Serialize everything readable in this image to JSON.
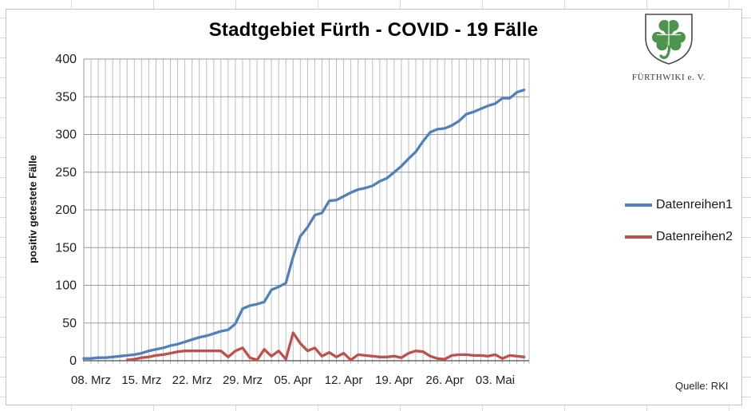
{
  "chart": {
    "title": "Stadtgebiet Fürth - COVID - 19 Fälle",
    "y_axis_title": "positiv getestete Fälle",
    "source": "Quelle: RKI",
    "legend": [
      {
        "label": "Datenreihen1",
        "color": "#4F81BD"
      },
      {
        "label": "Datenreihen2",
        "color": "#C0504D"
      }
    ]
  },
  "logo": {
    "org": "FÜRTHWIKI e. V.",
    "icon": "cloverleaf-shield",
    "leaf_color": "#4f944e"
  },
  "chart_data": {
    "type": "line",
    "title": "Stadtgebiet Fürth - COVID - 19 Fälle",
    "xlabel": "",
    "ylabel": "positiv getestete Fälle",
    "ylim": [
      0,
      400
    ],
    "y_ticks": [
      0,
      50,
      100,
      150,
      200,
      250,
      300,
      350,
      400
    ],
    "x_tick_labels": [
      "08. Mrz",
      "15. Mrz",
      "22. Mrz",
      "29. Mrz",
      "05. Apr",
      "12. Apr",
      "19. Apr",
      "26. Apr",
      "03. Mai"
    ],
    "x_tick_indices": [
      1,
      8,
      15,
      22,
      29,
      36,
      43,
      50,
      57
    ],
    "grid": {
      "major_horizontal": true,
      "minor_vertical_daily": true
    },
    "legend_position": "right",
    "categories": [
      "07. Mrz",
      "08. Mrz",
      "09. Mrz",
      "10. Mrz",
      "11. Mrz",
      "12. Mrz",
      "13. Mrz",
      "14. Mrz",
      "15. Mrz",
      "16. Mrz",
      "17. Mrz",
      "18. Mrz",
      "19. Mrz",
      "20. Mrz",
      "21. Mrz",
      "22. Mrz",
      "23. Mrz",
      "24. Mrz",
      "25. Mrz",
      "26. Mrz",
      "27. Mrz",
      "28. Mrz",
      "29. Mrz",
      "30. Mrz",
      "31. Mrz",
      "01. Apr",
      "02. Apr",
      "03. Apr",
      "04. Apr",
      "05. Apr",
      "06. Apr",
      "07. Apr",
      "08. Apr",
      "09. Apr",
      "10. Apr",
      "11. Apr",
      "12. Apr",
      "13. Apr",
      "14. Apr",
      "15. Apr",
      "16. Apr",
      "17. Apr",
      "18. Apr",
      "19. Apr",
      "20. Apr",
      "21. Apr",
      "22. Apr",
      "23. Apr",
      "24. Apr",
      "25. Apr",
      "26. Apr",
      "27. Apr",
      "28. Apr",
      "29. Apr",
      "30. Apr",
      "01. Mai",
      "02. Mai",
      "03. Mai",
      "04. Mai",
      "05. Mai",
      "06. Mai",
      "07. Mai"
    ],
    "series": [
      {
        "name": "Datenreihen1",
        "color": "#4F81BD",
        "values": [
          3,
          3,
          4,
          4,
          5,
          6,
          7,
          8,
          10,
          13,
          15,
          17,
          20,
          22,
          25,
          28,
          31,
          33,
          36,
          39,
          41,
          49,
          69,
          73,
          75,
          78,
          94,
          98,
          103,
          138,
          165,
          177,
          193,
          196,
          212,
          213,
          218,
          223,
          227,
          229,
          232,
          238,
          242,
          250,
          258,
          268,
          277,
          291,
          303,
          307,
          308,
          312,
          318,
          327,
          330,
          334,
          338,
          341,
          348,
          348,
          356,
          359
        ]
      },
      {
        "name": "Datenreihen2",
        "color": "#C0504D",
        "values": [
          null,
          null,
          null,
          null,
          null,
          null,
          1,
          2,
          4,
          5,
          7,
          8,
          10,
          12,
          13,
          13,
          13,
          13,
          13,
          13,
          5,
          13,
          17,
          4,
          1,
          15,
          6,
          13,
          2,
          37,
          23,
          13,
          17,
          6,
          11,
          5,
          10,
          1,
          8,
          7,
          6,
          5,
          5,
          6,
          4,
          10,
          13,
          12,
          6,
          3,
          2,
          7,
          8,
          8,
          7,
          7,
          6,
          8,
          3,
          7,
          6,
          5
        ]
      }
    ]
  }
}
